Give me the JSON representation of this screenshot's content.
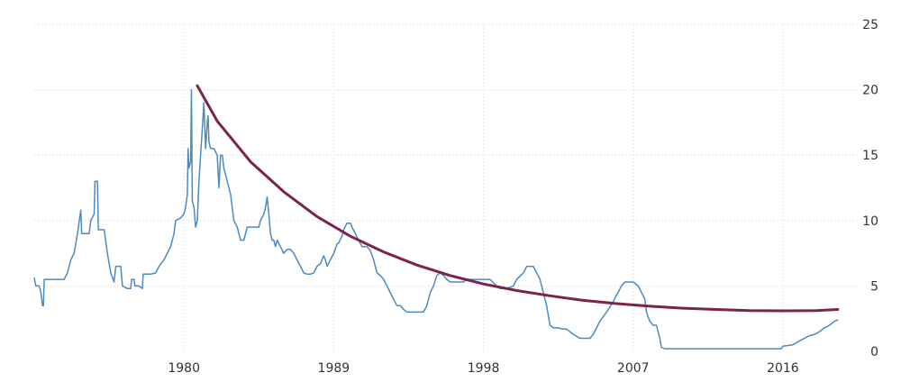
{
  "chart_data": {
    "type": "line",
    "title": "",
    "xlabel": "",
    "ylabel": "",
    "xlim": [
      1971.0,
      2020.5
    ],
    "ylim": [
      0,
      25
    ],
    "x_ticks": [
      1980,
      1989,
      1998,
      2007,
      2016
    ],
    "y_ticks": [
      0,
      5,
      10,
      15,
      20,
      25
    ],
    "y_axis_position": "right",
    "grid": true,
    "legend": "none",
    "colors": {
      "series": "#4d8ac0",
      "trend": "#7b2447"
    },
    "series": [
      {
        "role": "rate",
        "points": [
          [
            1971.0,
            5.6
          ],
          [
            1971.1,
            5.0
          ],
          [
            1971.3,
            5.0
          ],
          [
            1971.4,
            4.5
          ],
          [
            1971.5,
            3.5
          ],
          [
            1971.55,
            3.5
          ],
          [
            1971.6,
            5.5
          ],
          [
            1972.0,
            5.5
          ],
          [
            1972.5,
            5.5
          ],
          [
            1972.8,
            5.5
          ],
          [
            1973.0,
            6.0
          ],
          [
            1973.2,
            7.0
          ],
          [
            1973.4,
            7.5
          ],
          [
            1973.6,
            9.0
          ],
          [
            1973.8,
            10.8
          ],
          [
            1973.85,
            9.0
          ],
          [
            1974.0,
            9.0
          ],
          [
            1974.3,
            9.0
          ],
          [
            1974.4,
            10.0
          ],
          [
            1974.6,
            10.5
          ],
          [
            1974.65,
            13.0
          ],
          [
            1974.8,
            13.0
          ],
          [
            1974.85,
            9.3
          ],
          [
            1975.0,
            9.3
          ],
          [
            1975.2,
            9.3
          ],
          [
            1975.4,
            7.5
          ],
          [
            1975.6,
            6.0
          ],
          [
            1975.8,
            5.3
          ],
          [
            1975.9,
            6.5
          ],
          [
            1976.0,
            6.5
          ],
          [
            1976.2,
            6.5
          ],
          [
            1976.3,
            5.0
          ],
          [
            1976.6,
            4.8
          ],
          [
            1976.8,
            4.8
          ],
          [
            1976.85,
            5.5
          ],
          [
            1977.0,
            5.5
          ],
          [
            1977.05,
            5.0
          ],
          [
            1977.3,
            5.0
          ],
          [
            1977.5,
            4.8
          ],
          [
            1977.55,
            5.9
          ],
          [
            1977.8,
            5.9
          ],
          [
            1978.0,
            5.9
          ],
          [
            1978.3,
            6.0
          ],
          [
            1978.5,
            6.5
          ],
          [
            1978.8,
            7.0
          ],
          [
            1979.0,
            7.5
          ],
          [
            1979.2,
            8.0
          ],
          [
            1979.4,
            9.0
          ],
          [
            1979.5,
            10.0
          ],
          [
            1979.8,
            10.2
          ],
          [
            1980.0,
            10.5
          ],
          [
            1980.1,
            11.0
          ],
          [
            1980.2,
            12.0
          ],
          [
            1980.25,
            15.5
          ],
          [
            1980.3,
            14.0
          ],
          [
            1980.4,
            14.5
          ],
          [
            1980.45,
            20.0
          ],
          [
            1980.5,
            11.5
          ],
          [
            1980.6,
            11.0
          ],
          [
            1980.7,
            9.5
          ],
          [
            1980.8,
            10.0
          ],
          [
            1980.9,
            13.0
          ],
          [
            1981.0,
            15.0
          ],
          [
            1981.1,
            17.0
          ],
          [
            1981.2,
            19.0
          ],
          [
            1981.3,
            15.5
          ],
          [
            1981.4,
            17.5
          ],
          [
            1981.45,
            18.0
          ],
          [
            1981.5,
            16.0
          ],
          [
            1981.6,
            15.5
          ],
          [
            1981.8,
            15.5
          ],
          [
            1982.0,
            15.0
          ],
          [
            1982.1,
            12.5
          ],
          [
            1982.2,
            15.0
          ],
          [
            1982.3,
            15.0
          ],
          [
            1982.4,
            14.0
          ],
          [
            1982.6,
            13.0
          ],
          [
            1982.8,
            12.0
          ],
          [
            1983.0,
            10.0
          ],
          [
            1983.2,
            9.5
          ],
          [
            1983.4,
            8.5
          ],
          [
            1983.6,
            8.5
          ],
          [
            1983.8,
            9.5
          ],
          [
            1984.0,
            9.5
          ],
          [
            1984.3,
            9.5
          ],
          [
            1984.5,
            9.5
          ],
          [
            1984.6,
            10.0
          ],
          [
            1984.8,
            10.5
          ],
          [
            1984.9,
            11.0
          ],
          [
            1985.0,
            11.8
          ],
          [
            1985.1,
            10.5
          ],
          [
            1985.2,
            9.0
          ],
          [
            1985.3,
            8.5
          ],
          [
            1985.4,
            8.5
          ],
          [
            1985.5,
            8.0
          ],
          [
            1985.6,
            8.5
          ],
          [
            1985.8,
            8.0
          ],
          [
            1986.0,
            7.5
          ],
          [
            1986.2,
            7.8
          ],
          [
            1986.4,
            7.8
          ],
          [
            1986.6,
            7.5
          ],
          [
            1986.8,
            7.0
          ],
          [
            1987.0,
            6.5
          ],
          [
            1987.2,
            6.0
          ],
          [
            1987.4,
            5.9
          ],
          [
            1987.6,
            5.9
          ],
          [
            1987.8,
            6.0
          ],
          [
            1988.0,
            6.5
          ],
          [
            1988.2,
            6.7
          ],
          [
            1988.4,
            7.3
          ],
          [
            1988.5,
            7.0
          ],
          [
            1988.6,
            6.5
          ],
          [
            1988.8,
            7.0
          ],
          [
            1989.0,
            7.5
          ],
          [
            1989.2,
            8.2
          ],
          [
            1989.3,
            8.3
          ],
          [
            1989.5,
            8.8
          ],
          [
            1989.6,
            9.3
          ],
          [
            1989.8,
            9.8
          ],
          [
            1990.0,
            9.8
          ],
          [
            1990.1,
            9.5
          ],
          [
            1990.3,
            9.0
          ],
          [
            1990.5,
            8.5
          ],
          [
            1990.7,
            8.0
          ],
          [
            1991.0,
            8.0
          ],
          [
            1991.2,
            7.7
          ],
          [
            1991.4,
            7.0
          ],
          [
            1991.6,
            6.0
          ],
          [
            1991.8,
            5.8
          ],
          [
            1992.0,
            5.5
          ],
          [
            1992.2,
            5.0
          ],
          [
            1992.4,
            4.5
          ],
          [
            1992.6,
            4.0
          ],
          [
            1992.8,
            3.5
          ],
          [
            1993.0,
            3.5
          ],
          [
            1993.2,
            3.2
          ],
          [
            1993.4,
            3.0
          ],
          [
            1993.8,
            3.0
          ],
          [
            1994.0,
            3.0
          ],
          [
            1994.4,
            3.0
          ],
          [
            1994.6,
            3.5
          ],
          [
            1994.8,
            4.5
          ],
          [
            1995.0,
            5.0
          ],
          [
            1995.2,
            5.8
          ],
          [
            1995.4,
            6.0
          ],
          [
            1995.6,
            5.8
          ],
          [
            1995.8,
            5.5
          ],
          [
            1996.0,
            5.3
          ],
          [
            1996.4,
            5.3
          ],
          [
            1996.8,
            5.3
          ],
          [
            1997.0,
            5.5
          ],
          [
            1997.4,
            5.5
          ],
          [
            1997.8,
            5.5
          ],
          [
            1998.0,
            5.5
          ],
          [
            1998.4,
            5.5
          ],
          [
            1998.8,
            5.0
          ],
          [
            1999.0,
            4.8
          ],
          [
            1999.4,
            4.8
          ],
          [
            1999.8,
            5.0
          ],
          [
            2000.0,
            5.5
          ],
          [
            2000.4,
            6.0
          ],
          [
            2000.6,
            6.5
          ],
          [
            2000.8,
            6.5
          ],
          [
            2001.0,
            6.5
          ],
          [
            2001.2,
            6.0
          ],
          [
            2001.4,
            5.5
          ],
          [
            2001.6,
            4.5
          ],
          [
            2001.8,
            3.5
          ],
          [
            2002.0,
            2.0
          ],
          [
            2002.2,
            1.8
          ],
          [
            2002.5,
            1.8
          ],
          [
            2002.8,
            1.7
          ],
          [
            2003.0,
            1.7
          ],
          [
            2003.4,
            1.3
          ],
          [
            2003.8,
            1.0
          ],
          [
            2004.0,
            1.0
          ],
          [
            2004.4,
            1.0
          ],
          [
            2004.6,
            1.3
          ],
          [
            2004.8,
            1.8
          ],
          [
            2005.0,
            2.3
          ],
          [
            2005.4,
            3.0
          ],
          [
            2005.8,
            3.8
          ],
          [
            2006.0,
            4.3
          ],
          [
            2006.3,
            5.0
          ],
          [
            2006.5,
            5.3
          ],
          [
            2006.8,
            5.3
          ],
          [
            2007.0,
            5.3
          ],
          [
            2007.3,
            5.0
          ],
          [
            2007.5,
            4.5
          ],
          [
            2007.7,
            4.0
          ],
          [
            2007.8,
            3.0
          ],
          [
            2008.0,
            2.3
          ],
          [
            2008.2,
            2.0
          ],
          [
            2008.4,
            2.0
          ],
          [
            2008.6,
            1.0
          ],
          [
            2008.7,
            0.3
          ],
          [
            2008.9,
            0.2
          ],
          [
            2010.0,
            0.2
          ],
          [
            2012.0,
            0.2
          ],
          [
            2014.0,
            0.2
          ],
          [
            2015.9,
            0.2
          ],
          [
            2016.0,
            0.4
          ],
          [
            2016.6,
            0.5
          ],
          [
            2017.0,
            0.8
          ],
          [
            2017.3,
            1.0
          ],
          [
            2017.6,
            1.2
          ],
          [
            2017.9,
            1.3
          ],
          [
            2018.2,
            1.5
          ],
          [
            2018.5,
            1.8
          ],
          [
            2018.8,
            2.0
          ],
          [
            2019.1,
            2.3
          ],
          [
            2019.3,
            2.4
          ]
        ]
      },
      {
        "role": "trend",
        "points": [
          [
            1980.8,
            20.3
          ],
          [
            1982.0,
            17.6
          ],
          [
            1984.0,
            14.5
          ],
          [
            1986.0,
            12.2
          ],
          [
            1988.0,
            10.3
          ],
          [
            1990.0,
            8.8
          ],
          [
            1992.0,
            7.6
          ],
          [
            1994.0,
            6.6
          ],
          [
            1996.0,
            5.8
          ],
          [
            1998.0,
            5.15
          ],
          [
            2000.0,
            4.65
          ],
          [
            2002.0,
            4.25
          ],
          [
            2004.0,
            3.9
          ],
          [
            2006.0,
            3.65
          ],
          [
            2008.0,
            3.45
          ],
          [
            2010.0,
            3.3
          ],
          [
            2012.0,
            3.2
          ],
          [
            2014.0,
            3.12
          ],
          [
            2016.0,
            3.1
          ],
          [
            2018.0,
            3.12
          ],
          [
            2019.3,
            3.2
          ]
        ]
      }
    ]
  }
}
